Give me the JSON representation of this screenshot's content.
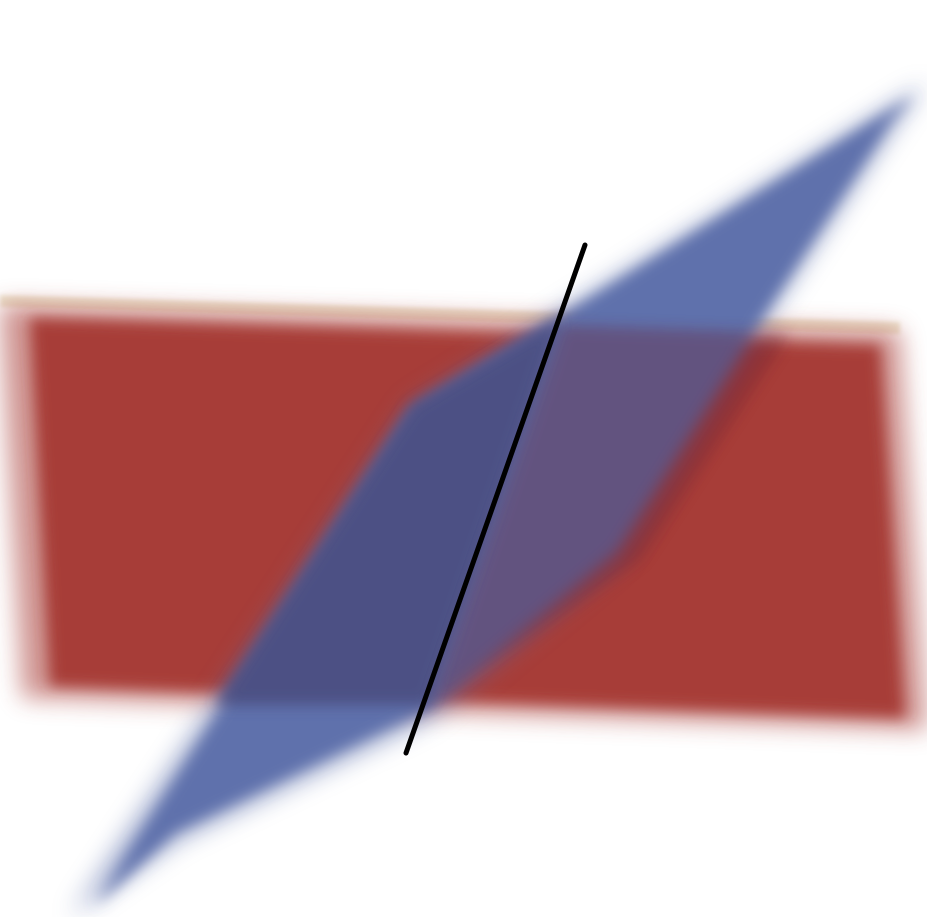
{
  "scene": {
    "background_color": "#ffffff",
    "planes": [
      {
        "name": "red-plane",
        "color": "#a73d39",
        "edge_color": "#eee6d2"
      },
      {
        "name": "blue-plane",
        "color": "#5f71ac",
        "overlap_color": "#4a4c7e"
      }
    ],
    "intersection_line": {
      "color": "#000000"
    }
  }
}
